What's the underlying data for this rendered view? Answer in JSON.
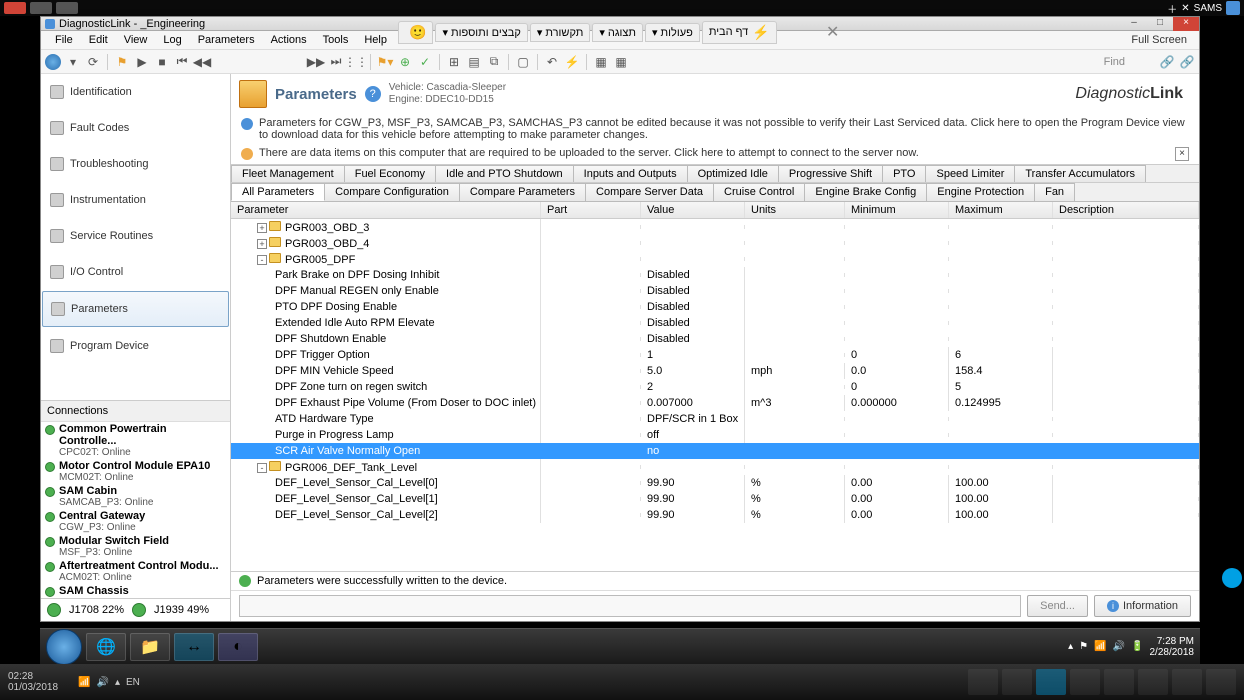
{
  "window": {
    "title": "DiagnosticLink - _Engineering",
    "fullscreen": "Full Screen"
  },
  "menu": [
    "File",
    "Edit",
    "View",
    "Log",
    "Parameters",
    "Actions",
    "Tools",
    "Help"
  ],
  "toolbar_find": "Find",
  "page": {
    "title": "Parameters",
    "vehicle_label": "Vehicle: Cascadia-Sleeper",
    "engine_label": "Engine: DDEC10-DD15"
  },
  "brand": {
    "a": "Diagnostic",
    "b": "Link"
  },
  "alerts": {
    "info": "Parameters for CGW_P3, MSF_P3, SAMCAB_P3, SAMCHAS_P3 cannot be edited because it was not possible to verify their Last Serviced data. Click here to open the Program Device view to download data for this vehicle before attempting to make parameter changes.",
    "warn": "There are data items on this computer that are required to be uploaded to the server. Click here to attempt to connect to the server now."
  },
  "tabs1": [
    "Fleet Management",
    "Fuel Economy",
    "Idle and PTO Shutdown",
    "Inputs and Outputs",
    "Optimized Idle",
    "Progressive Shift",
    "PTO",
    "Speed Limiter",
    "Transfer Accumulators"
  ],
  "tabs2": [
    "All Parameters",
    "Compare Configuration",
    "Compare Parameters",
    "Compare Server Data",
    "Cruise Control",
    "Engine Brake Config",
    "Engine Protection",
    "Fan"
  ],
  "gridcols": [
    "Parameter",
    "Part",
    "Value",
    "Units",
    "Minimum",
    "Maximum",
    "Description"
  ],
  "rows": [
    {
      "indent": 1,
      "exp": "+",
      "fold": true,
      "param": "PGR003_OBD_3"
    },
    {
      "indent": 1,
      "exp": "+",
      "fold": true,
      "param": "PGR003_OBD_4"
    },
    {
      "indent": 1,
      "exp": "-",
      "fold": true,
      "param": "PGR005_DPF"
    },
    {
      "indent": 2,
      "param": "Park Brake on DPF Dosing Inhibit",
      "val": "Disabled"
    },
    {
      "indent": 2,
      "param": "DPF Manual REGEN only Enable",
      "val": "Disabled"
    },
    {
      "indent": 2,
      "param": "PTO DPF Dosing Enable",
      "val": "Disabled"
    },
    {
      "indent": 2,
      "param": "Extended Idle Auto RPM Elevate",
      "val": "Disabled"
    },
    {
      "indent": 2,
      "param": "DPF Shutdown Enable",
      "val": "Disabled"
    },
    {
      "indent": 2,
      "param": "DPF Trigger Option",
      "val": "1",
      "min": "0",
      "max": "6"
    },
    {
      "indent": 2,
      "param": "DPF MIN Vehicle Speed",
      "val": "5.0",
      "unit": "mph",
      "min": "0.0",
      "max": "158.4"
    },
    {
      "indent": 2,
      "param": "DPF Zone turn on regen switch",
      "val": "2",
      "min": "0",
      "max": "5"
    },
    {
      "indent": 2,
      "param": "DPF Exhaust Pipe Volume (From Doser to DOC inlet)",
      "val": "0.007000",
      "unit": "m^3",
      "min": "0.000000",
      "max": "0.124995"
    },
    {
      "indent": 2,
      "param": "ATD Hardware Type",
      "val": "DPF/SCR in 1 Box"
    },
    {
      "indent": 2,
      "param": "Purge in Progress Lamp",
      "val": "off"
    },
    {
      "indent": 2,
      "param": "SCR Air Valve Normally Open",
      "val": "no",
      "sel": true
    },
    {
      "indent": 1,
      "exp": "-",
      "fold": true,
      "param": "PGR006_DEF_Tank_Level"
    },
    {
      "indent": 2,
      "param": "DEF_Level_Sensor_Cal_Level[0]",
      "val": "99.90",
      "unit": "%",
      "min": "0.00",
      "max": "100.00"
    },
    {
      "indent": 2,
      "param": "DEF_Level_Sensor_Cal_Level[1]",
      "val": "99.90",
      "unit": "%",
      "min": "0.00",
      "max": "100.00"
    },
    {
      "indent": 2,
      "param": "DEF_Level_Sensor_Cal_Level[2]",
      "val": "99.90",
      "unit": "%",
      "min": "0.00",
      "max": "100.00"
    }
  ],
  "foot_status": "Parameters were successfully written to the device.",
  "send_placeholder": "Send...",
  "info_btn": "Information",
  "nav": [
    "Identification",
    "Fault Codes",
    "Troubleshooting",
    "Instrumentation",
    "Service Routines",
    "I/O Control",
    "Parameters",
    "Program Device"
  ],
  "nav_sel": 6,
  "conn_hdr": "Connections",
  "connections": [
    {
      "t": "Common Powertrain Controlle...",
      "s": "CPC02T: Online"
    },
    {
      "t": "Motor Control Module EPA10",
      "s": "MCM02T: Online"
    },
    {
      "t": "SAM Cabin",
      "s": "SAMCAB_P3: Online"
    },
    {
      "t": "Central Gateway",
      "s": "CGW_P3: Online"
    },
    {
      "t": "Modular Switch Field",
      "s": "MSF_P3: Online"
    },
    {
      "t": "Aftertreatment Control Modu...",
      "s": "ACM02T: Online"
    },
    {
      "t": "SAM Chassis",
      "s": ""
    }
  ],
  "bus": [
    "J1708 22%",
    "J1939 49%"
  ],
  "btabs": [
    {
      "label": "דף הבית",
      "icn": "⚡"
    },
    {
      "label": "פעולות ▾"
    },
    {
      "label": "תצוגה ▾"
    },
    {
      "label": "תקשורת ▾"
    },
    {
      "label": "קבצים ותוספות ▾"
    },
    {
      "label": "",
      "icn": "🙂"
    }
  ],
  "tray": {
    "time": "7:28 PM",
    "date": "2/28/2018"
  },
  "tb2": {
    "time": "02:28",
    "date": "01/03/2018",
    "lang": "EN"
  },
  "topright": "SAMS"
}
